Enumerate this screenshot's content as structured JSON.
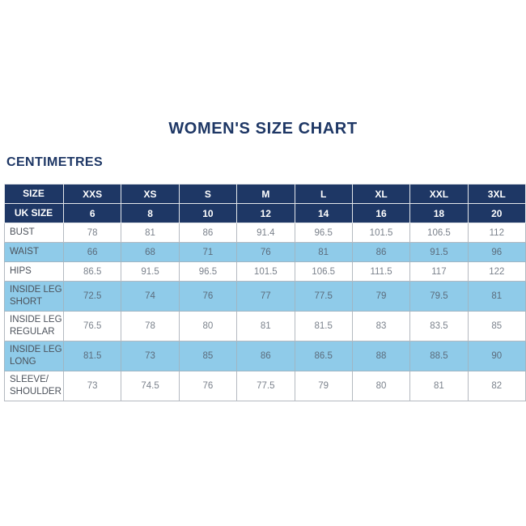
{
  "title": "WOMEN'S SIZE CHART",
  "unit_label": "CENTIMETRES",
  "colors": {
    "navy": "#1e3765",
    "light_blue": "#8fcbe9",
    "border_gray": "#b4b9c0"
  },
  "chart_data": {
    "type": "table",
    "title": "WOMEN'S SIZE CHART",
    "units": "CENTIMETRES",
    "size_row": {
      "label": "SIZE",
      "values": [
        "XXS",
        "XS",
        "S",
        "M",
        "L",
        "XL",
        "XXL",
        "3XL"
      ]
    },
    "uk_size_row": {
      "label": "UK SIZE",
      "values": [
        "6",
        "8",
        "10",
        "12",
        "14",
        "16",
        "18",
        "20"
      ]
    },
    "rows": [
      {
        "label": "BUST",
        "values": [
          "78",
          "81",
          "86",
          "91.4",
          "96.5",
          "101.5",
          "106.5",
          "112"
        ]
      },
      {
        "label": "WAIST",
        "values": [
          "66",
          "68",
          "71",
          "76",
          "81",
          "86",
          "91.5",
          "96"
        ]
      },
      {
        "label": "HIPS",
        "values": [
          "86.5",
          "91.5",
          "96.5",
          "101.5",
          "106.5",
          "111.5",
          "117",
          "122"
        ]
      },
      {
        "label": "INSIDE LEG\nSHORT",
        "values": [
          "72.5",
          "74",
          "76",
          "77",
          "77.5",
          "79",
          "79.5",
          "81"
        ]
      },
      {
        "label": "INSIDE LEG\nREGULAR",
        "values": [
          "76.5",
          "78",
          "80",
          "81",
          "81.5",
          "83",
          "83.5",
          "85"
        ]
      },
      {
        "label": "INSIDE LEG\nLONG",
        "values": [
          "81.5",
          "73",
          "85",
          "86",
          "86.5",
          "88",
          "88.5",
          "90"
        ]
      },
      {
        "label": "SLEEVE/\nSHOULDER",
        "values": [
          "73",
          "74.5",
          "76",
          "77.5",
          "79",
          "80",
          "81",
          "82"
        ]
      }
    ]
  }
}
